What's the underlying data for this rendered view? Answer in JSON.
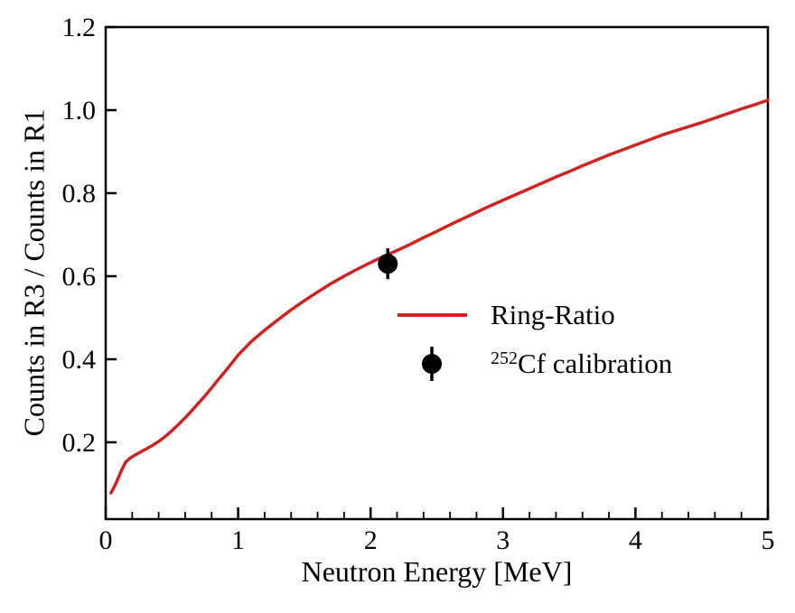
{
  "figure": {
    "background": "#ffffff",
    "text_color": "#000000"
  },
  "chart_data": {
    "type": "line",
    "title": "",
    "xlabel": "Neutron Energy [MeV]",
    "ylabel": "Counts in R3 / Counts in R1",
    "xlim": [
      0,
      5
    ],
    "ylim": [
      0.015,
      1.2
    ],
    "x_ticks": [
      0,
      1,
      2,
      3,
      4,
      5
    ],
    "x_tick_labels": [
      "0",
      "1",
      "2",
      "3",
      "4",
      "5"
    ],
    "x_minor_tick_step": 0.2,
    "y_ticks": [
      0.2,
      0.4,
      0.6,
      0.8,
      1.0,
      1.2
    ],
    "y_tick_labels": [
      "0.2",
      "0.4",
      "0.6",
      "0.8",
      "1.0",
      "1.2"
    ],
    "grid": false,
    "frame": "box",
    "legend_position": "center-right-inside",
    "series": [
      {
        "name": "Ring-Ratio",
        "type": "line",
        "color": "#cc2423",
        "line_width": 3.5,
        "points": [
          [
            0.04,
            0.078
          ],
          [
            0.06,
            0.09
          ],
          [
            0.08,
            0.103
          ],
          [
            0.1,
            0.118
          ],
          [
            0.12,
            0.133
          ],
          [
            0.15,
            0.152
          ],
          [
            0.18,
            0.161
          ],
          [
            0.22,
            0.169
          ],
          [
            0.26,
            0.176
          ],
          [
            0.3,
            0.183
          ],
          [
            0.35,
            0.192
          ],
          [
            0.4,
            0.202
          ],
          [
            0.45,
            0.214
          ],
          [
            0.5,
            0.228
          ],
          [
            0.55,
            0.243
          ],
          [
            0.6,
            0.259
          ],
          [
            0.65,
            0.276
          ],
          [
            0.7,
            0.294
          ],
          [
            0.75,
            0.312
          ],
          [
            0.8,
            0.331
          ],
          [
            0.85,
            0.351
          ],
          [
            0.9,
            0.37
          ],
          [
            0.95,
            0.39
          ],
          [
            1.0,
            0.41
          ],
          [
            1.1,
            0.443
          ],
          [
            1.2,
            0.47
          ],
          [
            1.3,
            0.495
          ],
          [
            1.4,
            0.519
          ],
          [
            1.5,
            0.541
          ],
          [
            1.6,
            0.562
          ],
          [
            1.7,
            0.582
          ],
          [
            1.8,
            0.6
          ],
          [
            1.9,
            0.617
          ],
          [
            2.0,
            0.633
          ],
          [
            2.1,
            0.648
          ],
          [
            2.2,
            0.662
          ],
          [
            2.3,
            0.677
          ],
          [
            2.4,
            0.693
          ],
          [
            2.5,
            0.708
          ],
          [
            2.6,
            0.724
          ],
          [
            2.7,
            0.739
          ],
          [
            2.8,
            0.754
          ],
          [
            2.9,
            0.769
          ],
          [
            3.0,
            0.783
          ],
          [
            3.1,
            0.797
          ],
          [
            3.2,
            0.811
          ],
          [
            3.3,
            0.825
          ],
          [
            3.4,
            0.839
          ],
          [
            3.5,
            0.852
          ],
          [
            3.6,
            0.866
          ],
          [
            3.7,
            0.879
          ],
          [
            3.8,
            0.892
          ],
          [
            3.9,
            0.904
          ],
          [
            4.0,
            0.916
          ],
          [
            4.1,
            0.928
          ],
          [
            4.2,
            0.94
          ],
          [
            4.3,
            0.95
          ],
          [
            4.4,
            0.96
          ],
          [
            4.5,
            0.97
          ],
          [
            4.6,
            0.981
          ],
          [
            4.7,
            0.992
          ],
          [
            4.8,
            1.003
          ],
          [
            4.9,
            1.013
          ],
          [
            5.0,
            1.024
          ]
        ]
      },
      {
        "name": "252Cf calibration",
        "type": "scatter",
        "color": "#000000",
        "marker": "filled-circle",
        "marker_radius_px": 11,
        "points": [
          [
            2.13,
            0.63
          ]
        ],
        "yerr": 0.037
      }
    ],
    "legend": {
      "items": [
        {
          "swatch": "line",
          "color": "#cc2423",
          "label": "Ring-Ratio"
        },
        {
          "swatch": "marker-errorbar",
          "color": "#000000",
          "label_sup": "252",
          "label_main": "Cf calibration"
        }
      ]
    }
  }
}
